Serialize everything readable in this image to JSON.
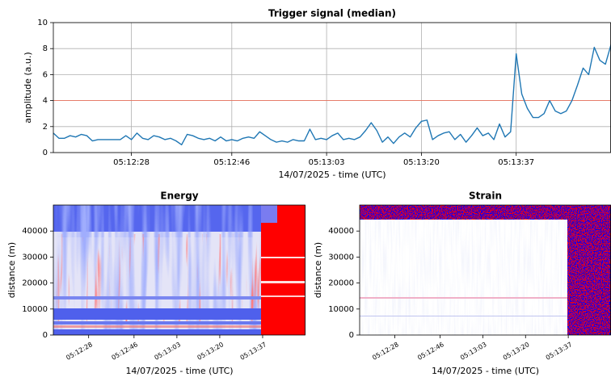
{
  "chart_data": [
    {
      "type": "line",
      "title": "Trigger signal (median)",
      "xlabel": "14/07/2025 - time (UTC)",
      "ylabel": "amplitude (a.u.)",
      "x": [
        "05:12:14",
        "05:12:15",
        "05:12:16",
        "05:12:17",
        "05:12:18",
        "05:12:19",
        "05:12:20",
        "05:12:21",
        "05:12:22",
        "05:12:23",
        "05:12:24",
        "05:12:25",
        "05:12:26",
        "05:12:27",
        "05:12:28",
        "05:12:29",
        "05:12:30",
        "05:12:31",
        "05:12:32",
        "05:12:33",
        "05:12:34",
        "05:12:35",
        "05:12:36",
        "05:12:37",
        "05:12:38",
        "05:12:39",
        "05:12:40",
        "05:12:41",
        "05:12:42",
        "05:12:43",
        "05:12:44",
        "05:12:45",
        "05:12:46",
        "05:12:47",
        "05:12:48",
        "05:12:49",
        "05:12:50",
        "05:12:51",
        "05:12:52",
        "05:12:53",
        "05:12:54",
        "05:12:55",
        "05:12:56",
        "05:12:57",
        "05:12:58",
        "05:12:59",
        "05:13:00",
        "05:13:01",
        "05:13:02",
        "05:13:03",
        "05:13:04",
        "05:13:05",
        "05:13:06",
        "05:13:07",
        "05:13:08",
        "05:13:09",
        "05:13:10",
        "05:13:11",
        "05:13:12",
        "05:13:13",
        "05:13:14",
        "05:13:15",
        "05:13:16",
        "05:13:17",
        "05:13:18",
        "05:13:19",
        "05:13:20",
        "05:13:21",
        "05:13:22",
        "05:13:23",
        "05:13:24",
        "05:13:25",
        "05:13:26",
        "05:13:27",
        "05:13:28",
        "05:13:29",
        "05:13:30",
        "05:13:31",
        "05:13:32",
        "05:13:33",
        "05:13:34",
        "05:13:35",
        "05:13:36",
        "05:13:37",
        "05:13:38",
        "05:13:39",
        "05:13:40",
        "05:13:41",
        "05:13:42",
        "05:13:43",
        "05:13:44",
        "05:13:45",
        "05:13:46",
        "05:13:47",
        "05:13:48",
        "05:13:49",
        "05:13:50",
        "05:13:51",
        "05:13:52",
        "05:13:53",
        "05:13:54"
      ],
      "values": [
        1.5,
        1.1,
        1.1,
        1.3,
        1.2,
        1.4,
        1.3,
        0.9,
        1.0,
        1.0,
        1.0,
        1.0,
        1.0,
        1.3,
        1.0,
        1.5,
        1.1,
        1.0,
        1.3,
        1.2,
        1.0,
        1.1,
        0.9,
        0.6,
        1.4,
        1.3,
        1.1,
        1.0,
        1.1,
        0.9,
        1.2,
        0.9,
        1.0,
        0.9,
        1.1,
        1.2,
        1.1,
        1.6,
        1.3,
        1.0,
        0.8,
        0.9,
        0.8,
        1.0,
        0.9,
        0.9,
        1.8,
        1.0,
        1.1,
        1.0,
        1.3,
        1.5,
        1.0,
        1.1,
        1.0,
        1.2,
        1.7,
        2.3,
        1.7,
        0.8,
        1.2,
        0.7,
        1.2,
        1.5,
        1.2,
        1.9,
        2.4,
        2.5,
        1.0,
        1.3,
        1.5,
        1.6,
        1.0,
        1.4,
        0.8,
        1.3,
        1.9,
        1.3,
        1.5,
        1.0,
        2.2,
        1.2,
        1.6,
        7.6,
        4.5,
        3.4,
        2.7,
        2.7,
        3.0,
        4.0,
        3.2,
        3.0,
        3.2,
        4.0,
        5.2,
        6.5,
        6.0,
        8.1,
        7.1,
        6.8,
        8.3
      ],
      "color": "#1f77b4",
      "hline": 4,
      "hline_color": "#e8705a",
      "xlim": [
        "05:12:14",
        "05:13:54"
      ],
      "xticks": [
        "05:12:28",
        "05:12:46",
        "05:13:03",
        "05:13:20",
        "05:13:37"
      ],
      "ylim": [
        0,
        10
      ],
      "yticks": [
        0,
        2,
        4,
        6,
        8,
        10
      ],
      "grid": true
    },
    {
      "type": "heatmap",
      "title": "Energy",
      "xlabel": "14/07/2025 - time (UTC)",
      "ylabel": "distance (m)",
      "xlim": [
        "05:12:14",
        "05:13:54"
      ],
      "xticks": [
        "05:12:28",
        "05:12:46",
        "05:13:03",
        "05:13:20",
        "05:13:37"
      ],
      "xtick_rotation": 30,
      "ylim": [
        0,
        50000
      ],
      "yticks": [
        0,
        10000,
        20000,
        30000,
        40000
      ],
      "grid": false
    },
    {
      "type": "heatmap",
      "title": "Strain",
      "xlabel": "14/07/2025 - time (UTC)",
      "ylabel": "distance (m)",
      "xlim": [
        "05:12:14",
        "05:13:54"
      ],
      "xticks": [
        "05:12:28",
        "05:12:46",
        "05:13:03",
        "05:13:20",
        "05:13:37"
      ],
      "xtick_rotation": 30,
      "ylim": [
        0,
        50000
      ],
      "yticks": [
        0,
        10000,
        20000,
        30000,
        40000
      ],
      "grid": false
    }
  ]
}
